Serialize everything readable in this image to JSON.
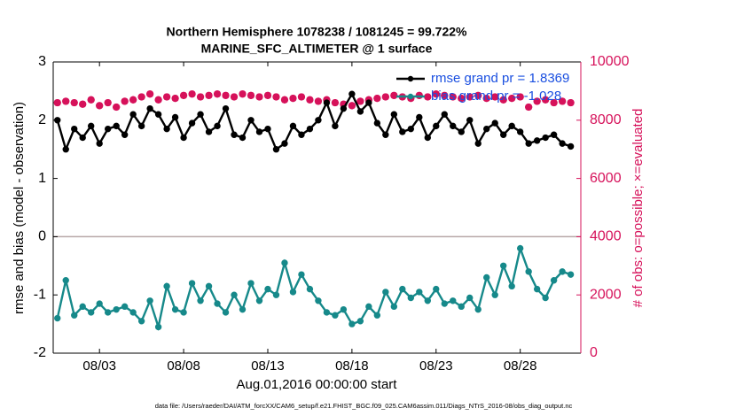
{
  "chart_data": {
    "type": "line",
    "title": "Northern Hemisphere 1078238 / 1081245 = 99.722%",
    "subtitle": "MARINE_SFC_ALTIMETER @ 1 surface",
    "xlabel": "Aug.01,2016 00:00:00 start",
    "ylabel": "rmse and bias (model - observation)",
    "y2label": "# of obs: o=possible; ×=evaluated",
    "footnote": "data file: /Users/raeder/DAI/ATM_forcXX/CAM6_setup/f.e21.FHIST_BGC.f09_025.CAM6assim.011/Diags_NTrS_2016-08/obs_diag_output.nc",
    "x": [
      -0.5,
      0,
      0.5,
      1,
      1.5,
      2,
      2.5,
      3,
      3.5,
      4,
      4.5,
      5,
      5.5,
      6,
      6.5,
      7,
      7.5,
      8,
      8.5,
      9,
      9.5,
      10,
      10.5,
      11,
      11.5,
      12,
      12.5,
      13,
      13.5,
      14,
      14.5,
      15,
      15.5,
      16,
      16.5,
      17,
      17.5,
      18,
      18.5,
      19,
      19.5,
      20,
      20.5,
      21,
      21.5,
      22,
      22.5,
      23,
      23.5,
      24,
      24.5,
      25,
      25.5,
      26,
      26.5,
      27,
      27.5,
      28,
      28.5,
      29,
      29.5,
      30
    ],
    "xlim": [
      -0.75,
      30.6
    ],
    "xticks": [
      {
        "value": 2,
        "label": "08/03"
      },
      {
        "value": 7,
        "label": "08/08"
      },
      {
        "value": 12,
        "label": "08/13"
      },
      {
        "value": 17,
        "label": "08/18"
      },
      {
        "value": 22,
        "label": "08/23"
      },
      {
        "value": 27,
        "label": "08/28"
      }
    ],
    "ylim": [
      -2,
      3
    ],
    "yticks": [
      -2,
      -1,
      0,
      1,
      2,
      3
    ],
    "y2lim": [
      0,
      10000
    ],
    "y2ticks": [
      0,
      2000,
      4000,
      6000,
      8000,
      10000
    ],
    "series": [
      {
        "name": "rmse grand pr = 1.8369",
        "color": "#000000",
        "marker": "circle",
        "values": [
          2.0,
          1.5,
          1.85,
          1.7,
          1.9,
          1.6,
          1.85,
          1.9,
          1.75,
          2.1,
          1.9,
          2.2,
          2.1,
          1.85,
          2.05,
          1.7,
          1.95,
          2.1,
          1.8,
          1.9,
          2.2,
          1.75,
          1.7,
          2.0,
          1.8,
          1.85,
          1.5,
          1.6,
          1.9,
          1.75,
          1.85,
          2.0,
          2.3,
          1.9,
          2.2,
          2.45,
          2.15,
          2.3,
          1.95,
          1.75,
          2.1,
          1.8,
          1.85,
          2.05,
          1.7,
          1.9,
          2.1,
          1.9,
          1.8,
          2.0,
          1.6,
          1.85,
          1.95,
          1.75,
          1.9,
          1.8,
          1.6,
          1.65,
          1.7,
          1.75,
          1.6,
          1.55
        ]
      },
      {
        "name": "bias grand pr = -1.028",
        "color": "#16898a",
        "marker": "circle",
        "values": [
          -1.4,
          -0.75,
          -1.35,
          -1.2,
          -1.3,
          -1.15,
          -1.3,
          -1.25,
          -1.2,
          -1.3,
          -1.45,
          -1.1,
          -1.55,
          -0.85,
          -1.25,
          -1.3,
          -0.8,
          -1.1,
          -0.85,
          -1.15,
          -1.3,
          -1.0,
          -1.25,
          -0.8,
          -1.1,
          -0.9,
          -1.0,
          -0.45,
          -0.95,
          -0.65,
          -0.9,
          -1.1,
          -1.3,
          -1.35,
          -1.25,
          -1.5,
          -1.45,
          -1.2,
          -1.35,
          -0.95,
          -1.2,
          -0.9,
          -1.05,
          -0.95,
          -1.1,
          -0.9,
          -1.15,
          -1.1,
          -1.2,
          -1.05,
          -1.25,
          -0.7,
          -1.0,
          -0.5,
          -0.85,
          -0.2,
          -0.6,
          -0.9,
          -1.05,
          -0.75,
          -0.6,
          -0.65
        ]
      },
      {
        "color": "#d6115a",
        "marker": "open-circle",
        "axis": "y2",
        "values": [
          8600,
          8650,
          8600,
          8550,
          8700,
          8500,
          8600,
          8450,
          8650,
          8700,
          8800,
          8900,
          8700,
          8800,
          8750,
          8850,
          8900,
          8800,
          8850,
          8900,
          8850,
          8800,
          8900,
          8850,
          8800,
          8850,
          8800,
          8700,
          8750,
          8800,
          8700,
          8650,
          8700,
          8600,
          8550,
          8500,
          8650,
          8700,
          8750,
          8800,
          8850,
          8800,
          8750,
          8850,
          8800,
          8900,
          8850,
          8800,
          8750,
          8800,
          8850,
          8750,
          8800,
          8700,
          8750,
          8800,
          8450,
          8650,
          8700,
          8600,
          8650,
          8600
        ]
      },
      {
        "color": "#d6115a",
        "marker": "asterisk",
        "axis": "y2",
        "values": [
          8600,
          8650,
          8600,
          8550,
          8700,
          8500,
          8600,
          8450,
          8650,
          8700,
          8800,
          8900,
          8700,
          8800,
          8750,
          8850,
          8900,
          8800,
          8850,
          8900,
          8850,
          8800,
          8900,
          8850,
          8800,
          8850,
          8800,
          8700,
          8750,
          8800,
          8700,
          8650,
          8700,
          8600,
          8550,
          8500,
          8650,
          8700,
          8750,
          8800,
          8850,
          8800,
          8750,
          8850,
          8800,
          8900,
          8850,
          8800,
          8750,
          8800,
          8850,
          8750,
          8800,
          8700,
          8750,
          8800,
          8450,
          8650,
          8700,
          8600,
          8650,
          8600
        ]
      }
    ]
  }
}
